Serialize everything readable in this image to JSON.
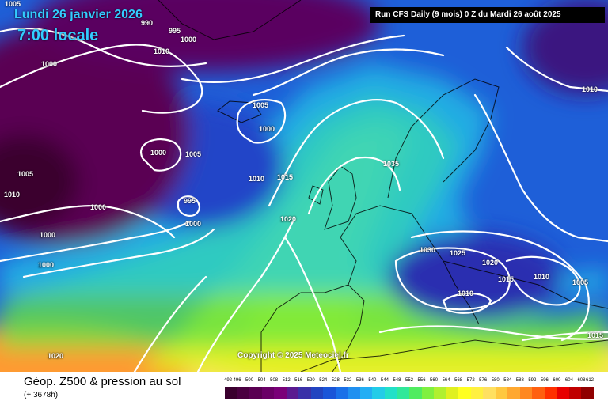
{
  "header": {
    "date": "Lundi 26 janvier 2026",
    "time": "7:00 locale",
    "run": "Run CFS Daily (9 mois) 0 Z du Mardi 26 août 2025"
  },
  "copyright": "Copyright © 2025 Meteociel.fr",
  "footer": {
    "title": "Géop. Z500 & pression au sol",
    "subtitle": "(+ 3678h)"
  },
  "isobar_labels": [
    "1005",
    "1000",
    "990",
    "995",
    "1000",
    "1010",
    "1005",
    "1000",
    "1000",
    "1005",
    "1010",
    "1000",
    "1015",
    "1035",
    "1005",
    "1010",
    "995",
    "1000",
    "1000",
    "1020",
    "1000",
    "1030",
    "1025",
    "1020",
    "1015",
    "1010",
    "1010",
    "1005",
    "1015",
    "1020",
    "1010"
  ],
  "legend": {
    "ticks": [
      "492",
      "496",
      "500",
      "504",
      "508",
      "512",
      "516",
      "520",
      "524",
      "528",
      "532",
      "536",
      "540",
      "544",
      "548",
      "552",
      "556",
      "560",
      "564",
      "568",
      "572",
      "576",
      "580",
      "584",
      "588",
      "592",
      "596",
      "600",
      "604",
      "608",
      "612"
    ],
    "colors": [
      "#3a002e",
      "#4a0040",
      "#5a0052",
      "#6a0066",
      "#7a0078",
      "#5a1a90",
      "#3a30a8",
      "#2244c0",
      "#1a55d8",
      "#1a70e8",
      "#2090f0",
      "#22aef4",
      "#22cce8",
      "#22e0c8",
      "#30e89a",
      "#50ec60",
      "#80f040",
      "#b0f030",
      "#e0f020",
      "#ffff20",
      "#fff040",
      "#ffe060",
      "#ffc840",
      "#ffa830",
      "#ff8820",
      "#ff6010",
      "#ff3000",
      "#e80000",
      "#c00000",
      "#900000",
      "#500000"
    ]
  },
  "colors": {
    "label": "#33ccff",
    "isobar": "#ffffff",
    "land_outline": "#000000"
  }
}
